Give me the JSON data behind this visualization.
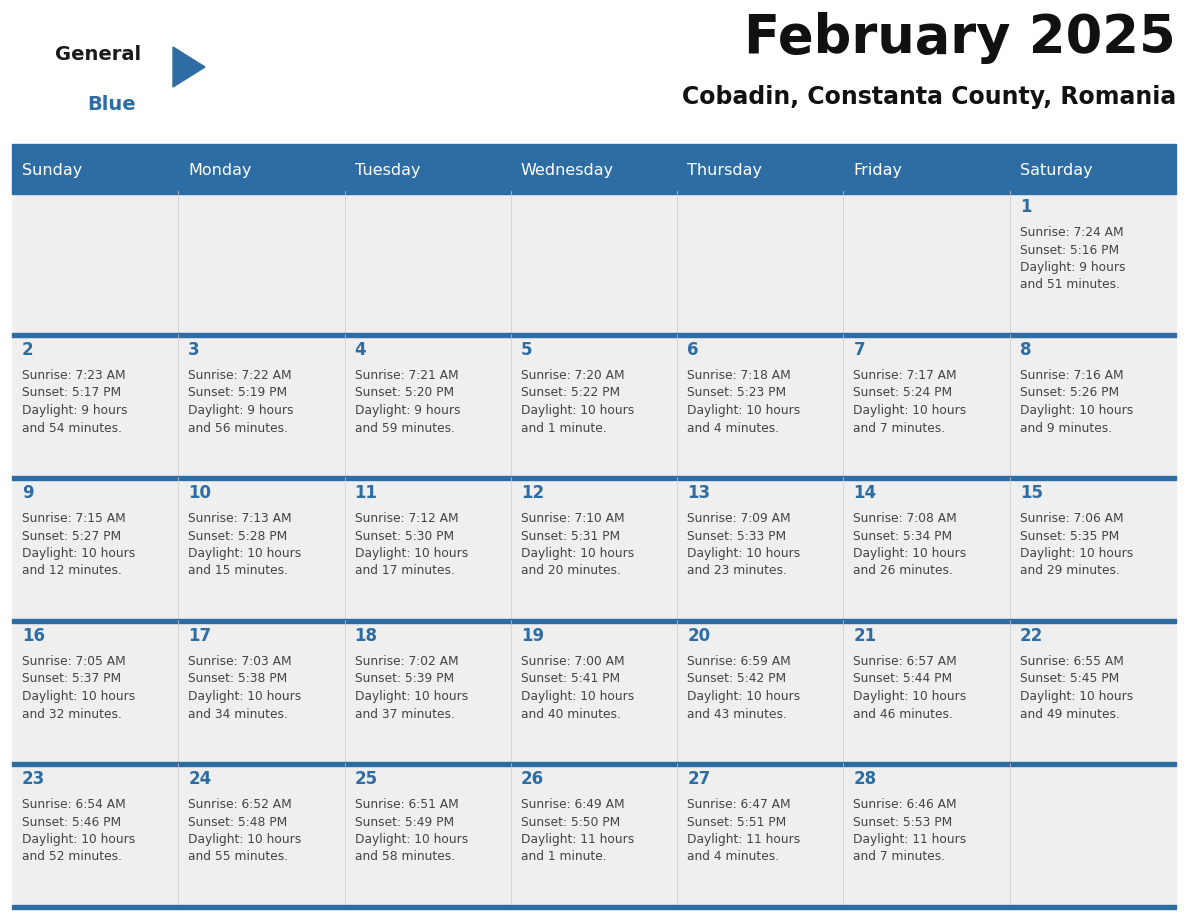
{
  "title": "February 2025",
  "subtitle": "Cobadin, Constanta County, Romania",
  "header_bg": "#2E6DA4",
  "header_text_color": "#FFFFFF",
  "cell_bg": "#EFEFEF",
  "cell_bg_empty": "#FFFFFF",
  "day_number_color": "#2E6DA4",
  "text_color": "#444444",
  "border_color": "#2E6DA4",
  "logo_black": "#1a1a1a",
  "logo_blue": "#2E6DA4",
  "days_of_week": [
    "Sunday",
    "Monday",
    "Tuesday",
    "Wednesday",
    "Thursday",
    "Friday",
    "Saturday"
  ],
  "weeks": [
    [
      null,
      null,
      null,
      null,
      null,
      null,
      1
    ],
    [
      2,
      3,
      4,
      5,
      6,
      7,
      8
    ],
    [
      9,
      10,
      11,
      12,
      13,
      14,
      15
    ],
    [
      16,
      17,
      18,
      19,
      20,
      21,
      22
    ],
    [
      23,
      24,
      25,
      26,
      27,
      28,
      null
    ]
  ],
  "cell_data": {
    "1": {
      "sunrise": "7:24 AM",
      "sunset": "5:16 PM",
      "daylight": "9 hours",
      "daylight2": "and 51 minutes."
    },
    "2": {
      "sunrise": "7:23 AM",
      "sunset": "5:17 PM",
      "daylight": "9 hours",
      "daylight2": "and 54 minutes."
    },
    "3": {
      "sunrise": "7:22 AM",
      "sunset": "5:19 PM",
      "daylight": "9 hours",
      "daylight2": "and 56 minutes."
    },
    "4": {
      "sunrise": "7:21 AM",
      "sunset": "5:20 PM",
      "daylight": "9 hours",
      "daylight2": "and 59 minutes."
    },
    "5": {
      "sunrise": "7:20 AM",
      "sunset": "5:22 PM",
      "daylight": "10 hours",
      "daylight2": "and 1 minute."
    },
    "6": {
      "sunrise": "7:18 AM",
      "sunset": "5:23 PM",
      "daylight": "10 hours",
      "daylight2": "and 4 minutes."
    },
    "7": {
      "sunrise": "7:17 AM",
      "sunset": "5:24 PM",
      "daylight": "10 hours",
      "daylight2": "and 7 minutes."
    },
    "8": {
      "sunrise": "7:16 AM",
      "sunset": "5:26 PM",
      "daylight": "10 hours",
      "daylight2": "and 9 minutes."
    },
    "9": {
      "sunrise": "7:15 AM",
      "sunset": "5:27 PM",
      "daylight": "10 hours",
      "daylight2": "and 12 minutes."
    },
    "10": {
      "sunrise": "7:13 AM",
      "sunset": "5:28 PM",
      "daylight": "10 hours",
      "daylight2": "and 15 minutes."
    },
    "11": {
      "sunrise": "7:12 AM",
      "sunset": "5:30 PM",
      "daylight": "10 hours",
      "daylight2": "and 17 minutes."
    },
    "12": {
      "sunrise": "7:10 AM",
      "sunset": "5:31 PM",
      "daylight": "10 hours",
      "daylight2": "and 20 minutes."
    },
    "13": {
      "sunrise": "7:09 AM",
      "sunset": "5:33 PM",
      "daylight": "10 hours",
      "daylight2": "and 23 minutes."
    },
    "14": {
      "sunrise": "7:08 AM",
      "sunset": "5:34 PM",
      "daylight": "10 hours",
      "daylight2": "and 26 minutes."
    },
    "15": {
      "sunrise": "7:06 AM",
      "sunset": "5:35 PM",
      "daylight": "10 hours",
      "daylight2": "and 29 minutes."
    },
    "16": {
      "sunrise": "7:05 AM",
      "sunset": "5:37 PM",
      "daylight": "10 hours",
      "daylight2": "and 32 minutes."
    },
    "17": {
      "sunrise": "7:03 AM",
      "sunset": "5:38 PM",
      "daylight": "10 hours",
      "daylight2": "and 34 minutes."
    },
    "18": {
      "sunrise": "7:02 AM",
      "sunset": "5:39 PM",
      "daylight": "10 hours",
      "daylight2": "and 37 minutes."
    },
    "19": {
      "sunrise": "7:00 AM",
      "sunset": "5:41 PM",
      "daylight": "10 hours",
      "daylight2": "and 40 minutes."
    },
    "20": {
      "sunrise": "6:59 AM",
      "sunset": "5:42 PM",
      "daylight": "10 hours",
      "daylight2": "and 43 minutes."
    },
    "21": {
      "sunrise": "6:57 AM",
      "sunset": "5:44 PM",
      "daylight": "10 hours",
      "daylight2": "and 46 minutes."
    },
    "22": {
      "sunrise": "6:55 AM",
      "sunset": "5:45 PM",
      "daylight": "10 hours",
      "daylight2": "and 49 minutes."
    },
    "23": {
      "sunrise": "6:54 AM",
      "sunset": "5:46 PM",
      "daylight": "10 hours",
      "daylight2": "and 52 minutes."
    },
    "24": {
      "sunrise": "6:52 AM",
      "sunset": "5:48 PM",
      "daylight": "10 hours",
      "daylight2": "and 55 minutes."
    },
    "25": {
      "sunrise": "6:51 AM",
      "sunset": "5:49 PM",
      "daylight": "10 hours",
      "daylight2": "and 58 minutes."
    },
    "26": {
      "sunrise": "6:49 AM",
      "sunset": "5:50 PM",
      "daylight": "11 hours",
      "daylight2": "and 1 minute."
    },
    "27": {
      "sunrise": "6:47 AM",
      "sunset": "5:51 PM",
      "daylight": "11 hours",
      "daylight2": "and 4 minutes."
    },
    "28": {
      "sunrise": "6:46 AM",
      "sunset": "5:53 PM",
      "daylight": "11 hours",
      "daylight2": "and 7 minutes."
    }
  }
}
